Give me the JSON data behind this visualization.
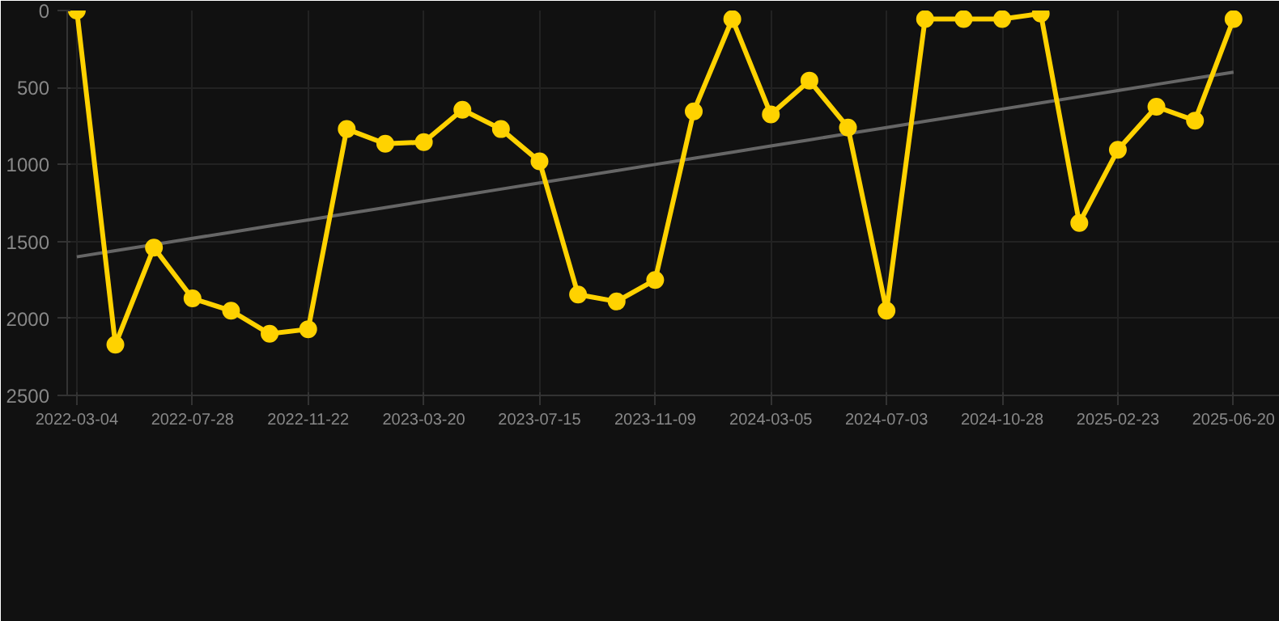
{
  "chart_data": {
    "type": "line",
    "categories": [
      "2022-03-04",
      null,
      null,
      "2022-07-28",
      null,
      null,
      "2022-11-22",
      null,
      null,
      "2023-03-20",
      null,
      null,
      "2023-07-15",
      null,
      null,
      "2023-11-09",
      null,
      null,
      "2024-03-05",
      null,
      null,
      "2024-07-03",
      null,
      null,
      "2024-10-28",
      null,
      null,
      "2025-02-23",
      null,
      null,
      "2025-06-20"
    ],
    "series": [
      {
        "color": "#ffd200",
        "values": [
          0,
          2170,
          1540,
          1870,
          1950,
          2100,
          2070,
          770,
          865,
          855,
          645,
          770,
          980,
          1845,
          1890,
          1750,
          655,
          55,
          675,
          455,
          760,
          1950,
          55,
          55,
          55,
          20,
          1380,
          905,
          625,
          715,
          55
        ]
      },
      {
        "type": "line",
        "color": "#666666",
        "marker": "none",
        "values": [
          1600,
          1560,
          1520,
          1480,
          1440,
          1400,
          1360,
          1320,
          1280,
          1240,
          1200,
          1160,
          1120,
          1080,
          1040,
          1000,
          960,
          920,
          880,
          840,
          800,
          760,
          720,
          680,
          640,
          600,
          560,
          520,
          480,
          440,
          400
        ]
      }
    ],
    "ylim": [
      2500,
      0
    ],
    "yticks": [
      0,
      500,
      1000,
      1500,
      2000,
      2500
    ],
    "grid": true,
    "marker": "circle",
    "line_style": "solid"
  }
}
